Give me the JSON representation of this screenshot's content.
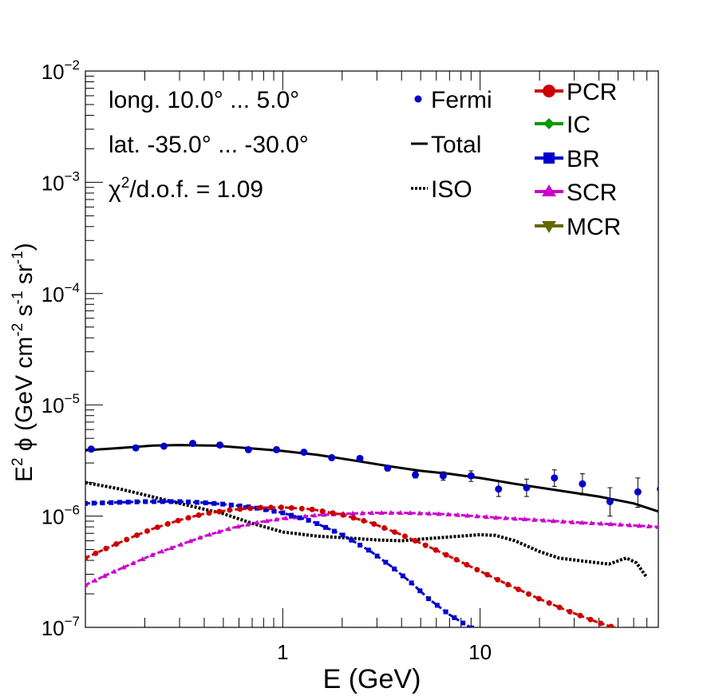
{
  "chart_data": {
    "type": "scatter",
    "xlabel": "E (GeV)",
    "ylabel": {
      "base": "E",
      "sup1": "2",
      "phi": " ϕ (GeV cm",
      "sup2": "-2",
      "mid": " s",
      "sup3": "-1",
      "mid2": " sr",
      "sup4": "-1",
      "end": ")"
    },
    "xscale": "log",
    "yscale": "log",
    "xlim": [
      0.1,
      80
    ],
    "ylim": [
      1e-07,
      0.01
    ],
    "x_tick_labels": [
      {
        "value": 1,
        "label": "1"
      },
      {
        "value": 10,
        "label": "10"
      }
    ],
    "y_tick_labels": [
      {
        "exp": -7,
        "base": "10",
        "sup": "−7"
      },
      {
        "exp": -6,
        "base": "10",
        "sup": "−6"
      },
      {
        "exp": -5,
        "base": "10",
        "sup": "−5"
      },
      {
        "exp": -4,
        "base": "10",
        "sup": "−4"
      },
      {
        "exp": -3,
        "base": "10",
        "sup": "−3"
      },
      {
        "exp": -2,
        "base": "10",
        "sup": "−2"
      }
    ],
    "annotations": {
      "longitude": "long. 10.0° ... 5.0°",
      "latitude": "lat. -35.0° ... -30.0°",
      "chi_prefix": "χ",
      "chi_sup": "2",
      "chi_rest": "/d.o.f. = 1.09"
    },
    "legend_position": "top-right",
    "legend": [
      {
        "name": "Fermi",
        "color": "#0000cc",
        "style": "dot"
      },
      {
        "name": "Total",
        "color": "#000000",
        "style": "line"
      },
      {
        "name": "ISO",
        "color": "#000000",
        "style": "dotted"
      },
      {
        "name": "PCR",
        "color": "#cc0000",
        "style": "circle-line"
      },
      {
        "name": "IC",
        "color": "#009900",
        "style": "diamond-line"
      },
      {
        "name": "BR",
        "color": "#0000cc",
        "style": "square-line"
      },
      {
        "name": "SCR",
        "color": "#cc00cc",
        "style": "triangle-line"
      },
      {
        "name": "MCR",
        "color": "#666600",
        "style": "triangle-down-line"
      }
    ],
    "fermi": {
      "x": [
        0.107,
        0.18,
        0.25,
        0.35,
        0.48,
        0.67,
        0.93,
        1.28,
        1.77,
        2.46,
        3.4,
        4.7,
        6.5,
        9.0,
        12.4,
        17.2,
        23.8,
        33,
        45.5,
        63,
        82
      ],
      "y": [
        4e-06,
        4.1e-06,
        4.25e-06,
        4.5e-06,
        4.35e-06,
        3.95e-06,
        3.95e-06,
        3.75e-06,
        3.35e-06,
        3.3e-06,
        2.7e-06,
        2.35e-06,
        2.3e-06,
        2.3e-06,
        1.75e-06,
        1.8e-06,
        2.2e-06,
        1.95e-06,
        1.35e-06,
        1.65e-06,
        1.75e-06
      ],
      "err_low": [
        1e-07,
        1e-07,
        1e-07,
        1e-07,
        1e-07,
        1e-07,
        1e-07,
        1e-07,
        1e-07,
        1e-07,
        1.5e-07,
        1.5e-07,
        2e-07,
        2.5e-07,
        2.5e-07,
        3e-07,
        3.5e-07,
        4e-07,
        3.5e-07,
        4.5e-07,
        5e-07
      ],
      "err_high": [
        1e-07,
        1e-07,
        1e-07,
        1e-07,
        1e-07,
        1e-07,
        1e-07,
        1e-07,
        1e-07,
        1e-07,
        1.5e-07,
        1.5e-07,
        2e-07,
        2.5e-07,
        3e-07,
        3.5e-07,
        4e-07,
        4.5e-07,
        4.5e-07,
        5.5e-07,
        6.5e-07
      ]
    },
    "total": {
      "x": [
        0.1,
        0.15,
        0.22,
        0.3,
        0.45,
        0.7,
        1.0,
        1.5,
        2.2,
        3.5,
        5,
        7,
        10,
        15,
        25,
        40,
        60,
        80
      ],
      "y": [
        3.9e-06,
        4.1e-06,
        4.3e-06,
        4.35e-06,
        4.3e-06,
        4.05e-06,
        3.85e-06,
        3.55e-06,
        3.2e-06,
        2.8e-06,
        2.55e-06,
        2.4e-06,
        2.2e-06,
        1.95e-06,
        1.7e-06,
        1.5e-06,
        1.3e-06,
        1.1e-06
      ]
    },
    "iso": {
      "x": [
        0.1,
        0.15,
        0.2,
        0.3,
        0.5,
        0.7,
        1.0,
        1.5,
        2.0,
        3.0,
        4.0,
        5.0,
        7.0,
        10,
        12,
        15,
        20,
        25,
        35,
        45,
        55,
        62,
        70
      ],
      "y": [
        2e-06,
        1.75e-06,
        1.55e-06,
        1.3e-06,
        1.05e-06,
        8.6e-07,
        7.2e-07,
        6.6e-07,
        6.4e-07,
        6.1e-07,
        6e-07,
        6.2e-07,
        6.5e-07,
        6.8e-07,
        6.7e-07,
        6e-07,
        4.8e-07,
        4.2e-07,
        3.9e-07,
        3.7e-07,
        4.2e-07,
        3.8e-07,
        2.8e-07
      ]
    },
    "pcr": {
      "x": [
        0.1,
        0.13,
        0.17,
        0.22,
        0.3,
        0.4,
        0.55,
        0.75,
        1.0,
        1.4,
        2.0,
        2.8,
        4.0,
        5.5,
        7.5,
        10,
        14,
        20,
        28,
        40,
        52
      ],
      "y": [
        4.2e-07,
        5.2e-07,
        6.4e-07,
        7.7e-07,
        9.2e-07,
        1.05e-06,
        1.14e-06,
        1.19e-06,
        1.2e-06,
        1.15e-06,
        1.03e-06,
        8.7e-07,
        6.8e-07,
        5.3e-07,
        4.1e-07,
        3.2e-07,
        2.4e-07,
        1.8e-07,
        1.4e-07,
        1.1e-07,
        9.5e-08
      ]
    },
    "br": {
      "x": [
        0.1,
        0.15,
        0.2,
        0.3,
        0.4,
        0.5,
        0.7,
        1.0,
        1.4,
        2.0,
        2.8,
        3.5,
        4.5,
        5.5,
        7.0,
        8.5,
        10
      ],
      "y": [
        1.3e-06,
        1.33e-06,
        1.35e-06,
        1.35e-06,
        1.32e-06,
        1.28e-06,
        1.2e-06,
        1.07e-06,
        9e-07,
        6.8e-07,
        4.8e-07,
        3.6e-07,
        2.5e-07,
        1.8e-07,
        1.3e-07,
        1.05e-07,
        9e-08
      ]
    },
    "scr": {
      "x": [
        0.1,
        0.13,
        0.17,
        0.22,
        0.3,
        0.4,
        0.55,
        0.75,
        1.0,
        1.5,
        2.0,
        3.0,
        4.0,
        6.0,
        8.0,
        12,
        20,
        30,
        50,
        80
      ],
      "y": [
        2.4e-07,
        3e-07,
        3.7e-07,
        4.5e-07,
        5.5e-07,
        6.6e-07,
        7.8e-07,
        8.8e-07,
        9.5e-07,
        1.02e-06,
        1.05e-06,
        1.07e-06,
        1.07e-06,
        1.05e-06,
        1.02e-06,
        9.7e-07,
        9.2e-07,
        8.8e-07,
        8.4e-07,
        8e-07
      ]
    }
  }
}
